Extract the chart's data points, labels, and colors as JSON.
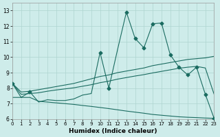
{
  "xlabel": "Humidex (Indice chaleur)",
  "x_ticks": [
    0,
    1,
    2,
    3,
    4,
    5,
    6,
    7,
    8,
    9,
    10,
    11,
    12,
    13,
    14,
    15,
    16,
    17,
    18,
    19,
    20,
    21,
    22,
    23
  ],
  "xlim": [
    0,
    23
  ],
  "ylim": [
    6,
    13.5
  ],
  "yticks": [
    6,
    7,
    8,
    9,
    10,
    11,
    12,
    13
  ],
  "bg_color": "#ceecea",
  "line_color": "#1a6b60",
  "grid_color": "#aed4d0",
  "line_main": {
    "x": [
      0,
      1,
      2,
      3,
      4,
      5,
      6,
      7,
      8,
      9,
      10,
      11,
      12,
      13,
      14,
      15,
      16,
      17,
      18,
      19,
      20,
      21,
      22,
      23
    ],
    "y": [
      8.3,
      7.4,
      7.75,
      7.1,
      7.25,
      7.2,
      7.2,
      7.3,
      7.55,
      7.65,
      10.3,
      8.0,
      10.5,
      12.9,
      11.2,
      10.6,
      12.15,
      12.2,
      10.15,
      9.35,
      8.85,
      9.35,
      7.6,
      6.05
    ]
  },
  "line_upper": {
    "x": [
      0,
      1,
      2,
      3,
      4,
      5,
      6,
      7,
      8,
      9,
      10,
      11,
      12,
      13,
      14,
      15,
      16,
      17,
      18,
      19,
      20,
      21,
      22,
      23
    ],
    "y": [
      8.3,
      7.75,
      7.8,
      7.9,
      8.0,
      8.1,
      8.2,
      8.3,
      8.45,
      8.6,
      8.75,
      8.85,
      9.0,
      9.1,
      9.2,
      9.3,
      9.45,
      9.55,
      9.65,
      9.75,
      9.85,
      9.9,
      9.95,
      10.05
    ]
  },
  "line_mid": {
    "x": [
      0,
      1,
      2,
      3,
      4,
      5,
      6,
      7,
      8,
      9,
      10,
      11,
      12,
      13,
      14,
      15,
      16,
      17,
      18,
      19,
      20,
      21,
      22,
      23
    ],
    "y": [
      8.3,
      7.6,
      7.65,
      7.7,
      7.8,
      7.88,
      7.95,
      8.02,
      8.12,
      8.22,
      8.35,
      8.45,
      8.58,
      8.68,
      8.78,
      8.87,
      8.98,
      9.08,
      9.18,
      9.28,
      9.35,
      9.4,
      9.3,
      7.6
    ]
  },
  "line_bottom": {
    "x": [
      0,
      1,
      2,
      3,
      4,
      5,
      6,
      7,
      8,
      9,
      10,
      11,
      12,
      13,
      14,
      15,
      16,
      17,
      18,
      19,
      20,
      21,
      22,
      23
    ],
    "y": [
      7.4,
      7.4,
      7.4,
      7.15,
      7.1,
      7.05,
      7.0,
      6.95,
      6.88,
      6.82,
      6.75,
      6.68,
      6.6,
      6.52,
      6.45,
      6.38,
      6.3,
      6.25,
      6.2,
      6.15,
      6.12,
      6.1,
      6.07,
      6.05
    ]
  },
  "marker_x": [
    0,
    2,
    10,
    11,
    13,
    14,
    15,
    16,
    17,
    18,
    19,
    20,
    21,
    22,
    23
  ],
  "marker_y": [
    8.3,
    7.75,
    10.3,
    8.0,
    12.9,
    11.2,
    10.6,
    12.15,
    12.2,
    10.15,
    9.35,
    8.85,
    9.35,
    7.6,
    6.05
  ]
}
